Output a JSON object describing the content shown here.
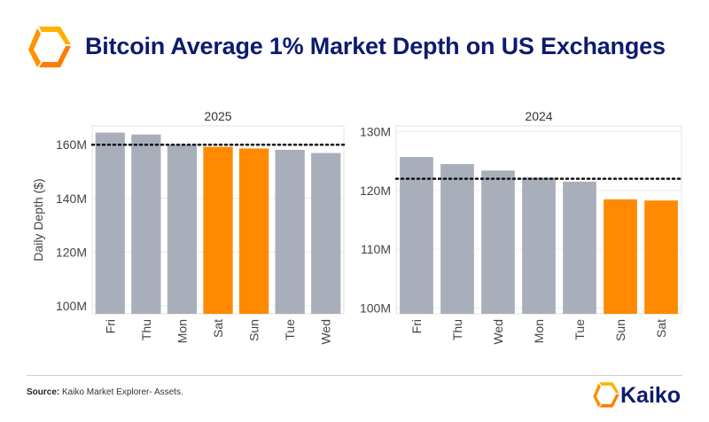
{
  "header": {
    "title": "Bitcoin Average 1% Market Depth on US Exchanges"
  },
  "footer": {
    "source_label": "Source:",
    "source_text": "Kaiko Market Explorer- Assets.",
    "brand": "Kaiko"
  },
  "colors": {
    "weekday": "#a9afba",
    "weekend": "#ff8a00",
    "title": "#0d1b6e"
  },
  "chart_data": [
    {
      "type": "bar",
      "title": "2025",
      "ylabel": "Daily Depth ($)",
      "categories": [
        "Fri",
        "Thu",
        "Mon",
        "Sat",
        "Sun",
        "Tue",
        "Wed"
      ],
      "values": [
        164.5,
        163.8,
        160.0,
        159.2,
        158.6,
        158.1,
        156.9
      ],
      "weekend": [
        false,
        false,
        false,
        true,
        true,
        false,
        false
      ],
      "ylim": [
        97,
        167
      ],
      "yticks": [
        100,
        120,
        140,
        160
      ],
      "ytick_labels": [
        "100M",
        "120M",
        "140M",
        "160M"
      ],
      "reference_line": 160.0,
      "grid": true
    },
    {
      "type": "bar",
      "title": "2024",
      "ylabel": "",
      "categories": [
        "Fri",
        "Thu",
        "Wed",
        "Mon",
        "Tue",
        "Sun",
        "Sat"
      ],
      "values": [
        125.7,
        124.5,
        123.4,
        122.2,
        121.5,
        118.5,
        118.3
      ],
      "weekend": [
        false,
        false,
        false,
        false,
        false,
        true,
        true
      ],
      "ylim": [
        99,
        131
      ],
      "yticks": [
        100,
        110,
        120,
        130
      ],
      "ytick_labels": [
        "100M",
        "110M",
        "120M",
        "130M"
      ],
      "reference_line": 122.0,
      "grid": true
    }
  ]
}
